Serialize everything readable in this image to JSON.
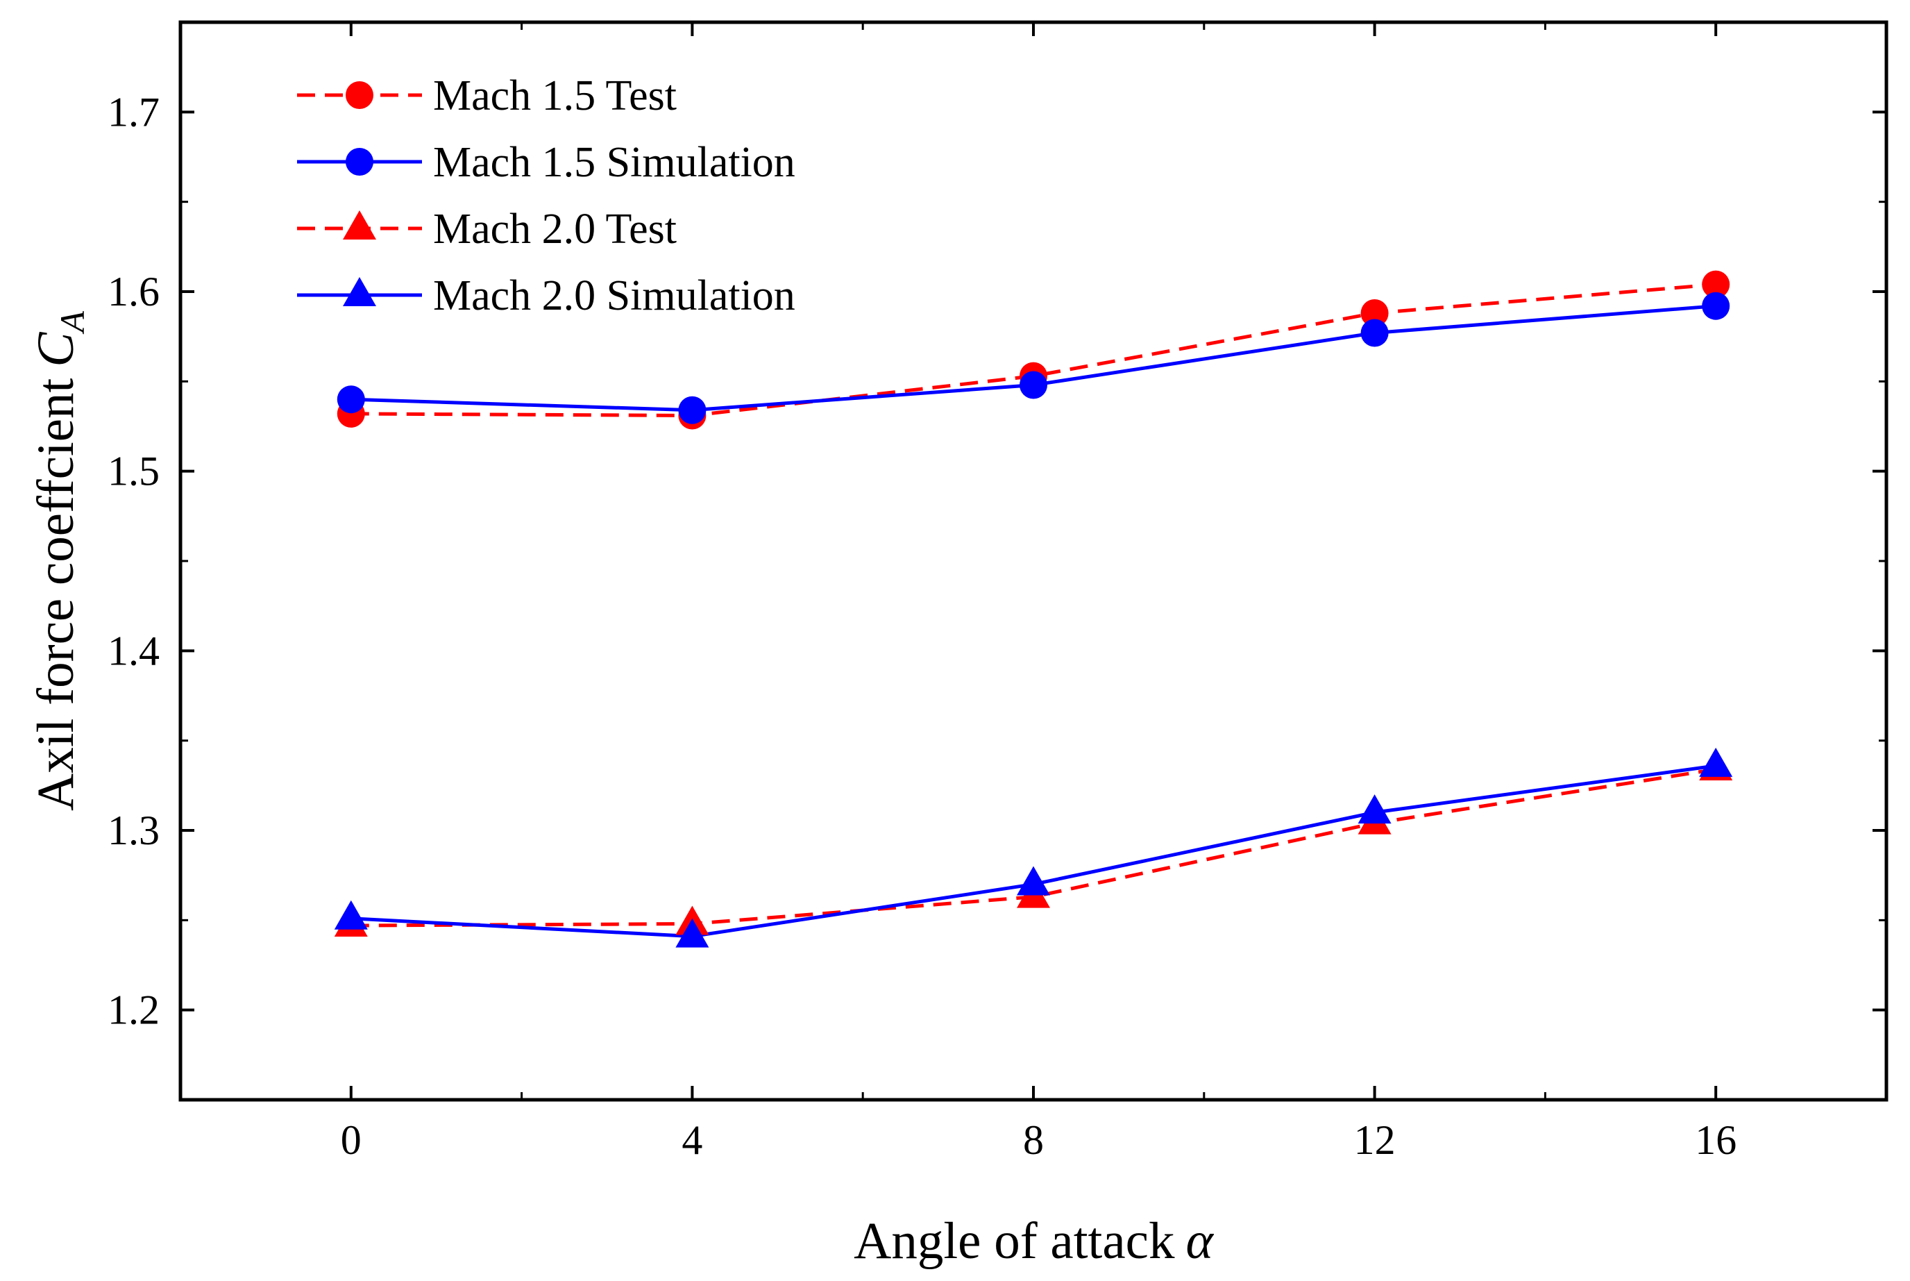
{
  "chart_data": {
    "type": "line",
    "title": "",
    "xlabel": "Angle of attack",
    "xlabel_symbol": "α",
    "ylabel": "Axil force coeffcient",
    "ylabel_symbol": "C",
    "ylabel_subscript": "A",
    "x": [
      0,
      4,
      8,
      12,
      16
    ],
    "xlim": [
      -2,
      18
    ],
    "ylim": [
      1.15,
      1.75
    ],
    "xticks": [
      "0",
      "4",
      "8",
      "12",
      "16"
    ],
    "yticks": [
      "1.2",
      "1.3",
      "1.4",
      "1.5",
      "1.6",
      "1.7"
    ],
    "legend_position": "top-left",
    "series": [
      {
        "name": "Mach 1.5 Test",
        "color": "#ff0000",
        "line": "dashed",
        "marker": "circle",
        "values": [
          1.532,
          1.531,
          1.553,
          1.588,
          1.604
        ]
      },
      {
        "name": "Mach 1.5 Simulation",
        "color": "#0000ff",
        "line": "solid",
        "marker": "circle",
        "values": [
          1.54,
          1.534,
          1.548,
          1.577,
          1.592
        ]
      },
      {
        "name": "Mach 2.0 Test",
        "color": "#ff0000",
        "line": "dashed",
        "marker": "triangle",
        "values": [
          1.247,
          1.248,
          1.263,
          1.304,
          1.334
        ]
      },
      {
        "name": "Mach 2.0 Simulation",
        "color": "#0000ff",
        "line": "solid",
        "marker": "triangle",
        "values": [
          1.251,
          1.241,
          1.27,
          1.31,
          1.336
        ]
      }
    ]
  }
}
